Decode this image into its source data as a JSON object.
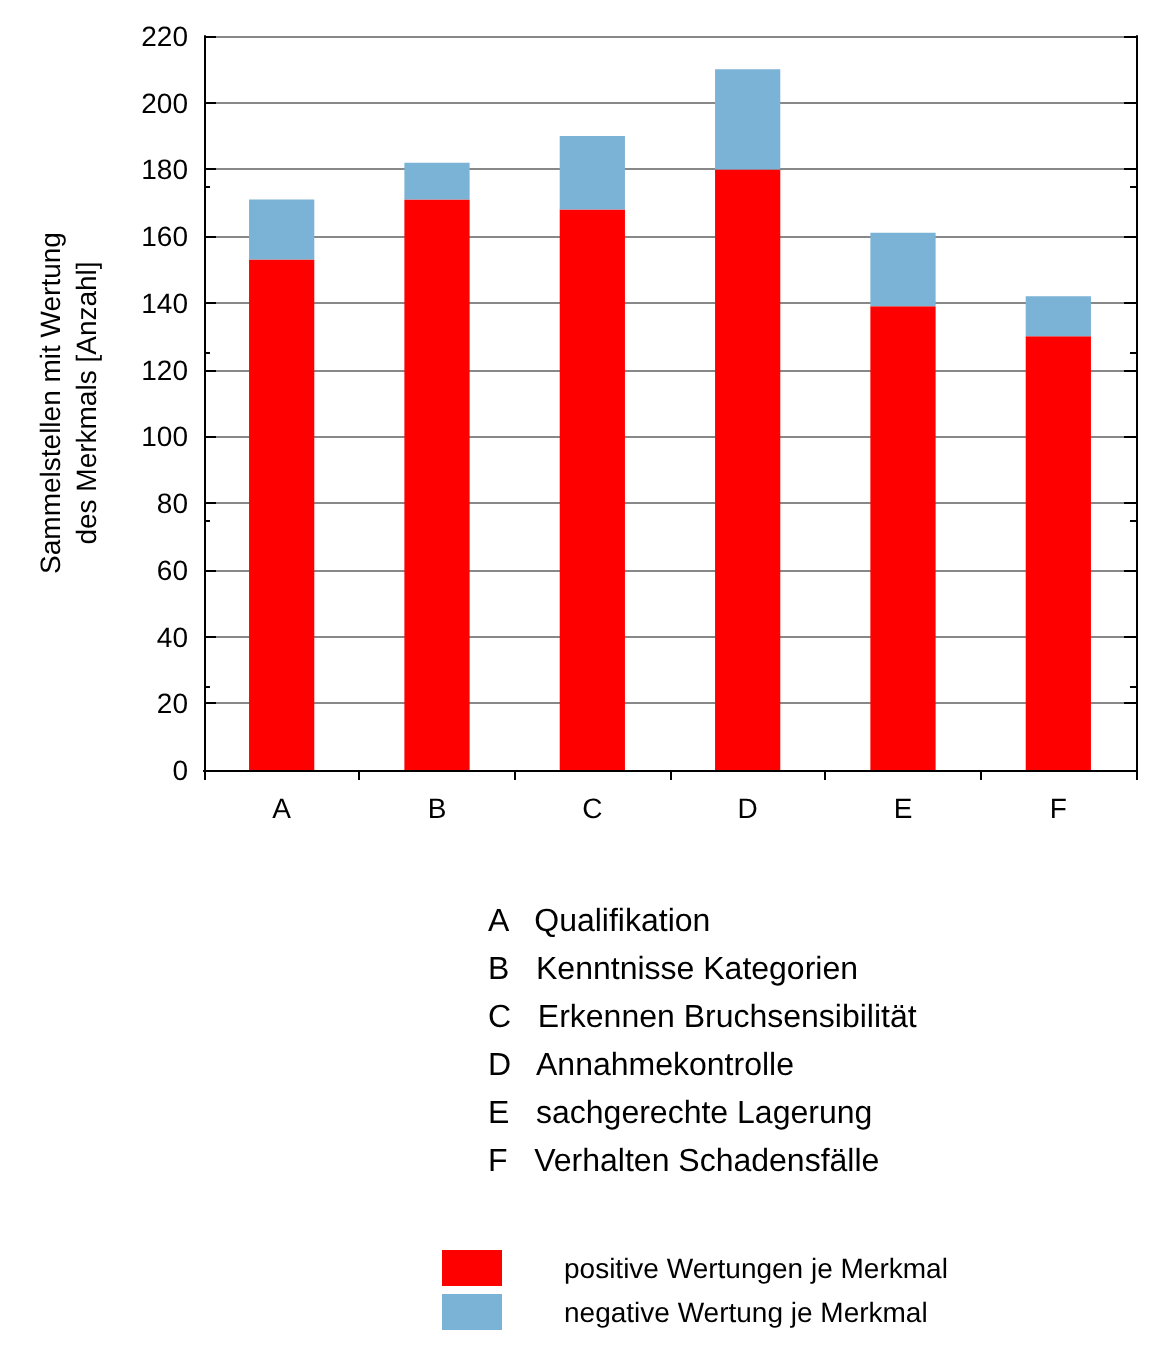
{
  "chart_data": {
    "type": "bar",
    "stacked": true,
    "ylabel": "Sammelstellen mit Wertung\ndes Merkmals [Anzahl]",
    "categories": [
      "A",
      "B",
      "C",
      "D",
      "E",
      "F"
    ],
    "series": [
      {
        "name": "positive Wertungen je Merkmal",
        "color": "#ff0000",
        "values": [
          153,
          171,
          168,
          180,
          139,
          130
        ]
      },
      {
        "name": "negative Wertung je Merkmal",
        "color": "#7bb3d6",
        "values": [
          18,
          11,
          22,
          30,
          22,
          12
        ]
      }
    ],
    "ylim": [
      0,
      220
    ],
    "yticks": [
      0,
      20,
      40,
      60,
      80,
      100,
      120,
      140,
      160,
      180,
      200,
      220
    ],
    "grid": "y",
    "legend": "bottom",
    "annotations": [
      "A   Qualifikation",
      "B   Kenntnisse Kategorien",
      "C   Erkennen Bruchsensibilität",
      "D   Annahmekontrolle",
      "E   sachgerechte Lagerung",
      "F   Verhalten Schadensfälle"
    ]
  }
}
